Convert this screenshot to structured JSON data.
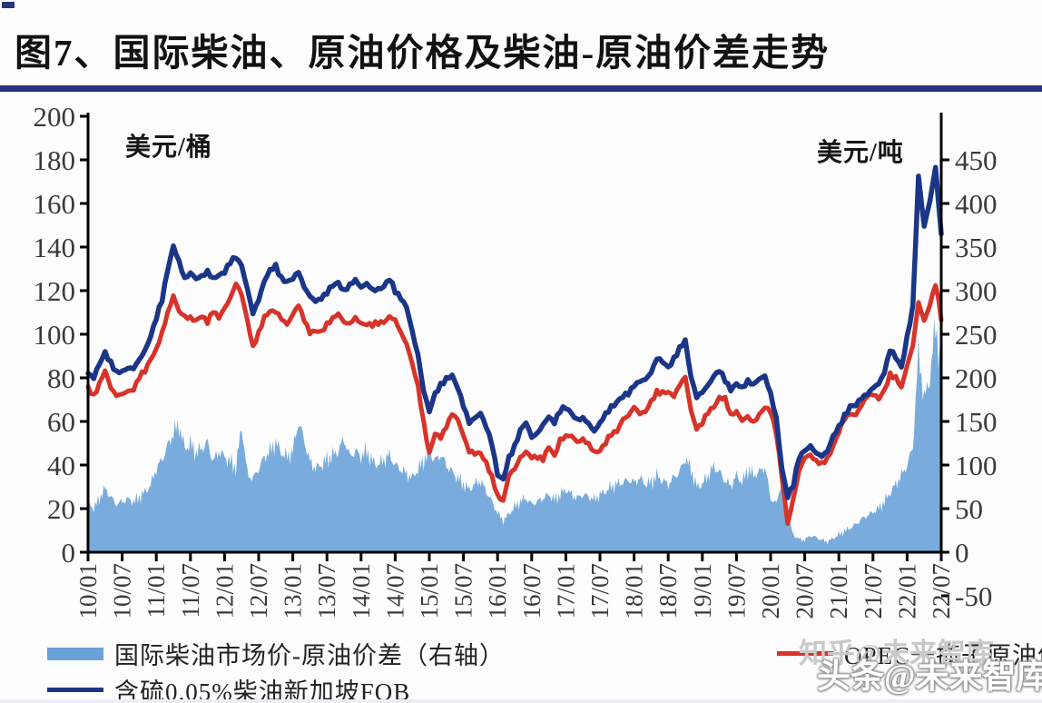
{
  "title": "图7、国际柴油、原油价格及柴油-原油价差走势",
  "watermark": {
    "back": "知乎@未来智库",
    "front": "头条@未来智库"
  },
  "colors": {
    "title_rule": "#28347e",
    "navy_line": "#1b3687",
    "red_line": "#d6342a",
    "area_fill": "#79acdc",
    "axis": "#000000",
    "tick_text": "#3a3a3e"
  },
  "chart_data": {
    "type": "line",
    "subtype": "two-line-plus-area",
    "grid": "off",
    "left_axis": {
      "label": "美元/桶",
      "min": 0,
      "max": 200,
      "step": 20,
      "ticks": [
        0,
        20,
        40,
        60,
        80,
        100,
        120,
        140,
        160,
        180,
        200
      ]
    },
    "right_axis": {
      "label": "美元/吨",
      "min": -50,
      "max": 450,
      "step": 50,
      "ticks": [
        -50,
        0,
        50,
        100,
        150,
        200,
        250,
        300,
        350,
        400,
        450
      ]
    },
    "x_tick_labels": [
      "10/01",
      "10/07",
      "11/01",
      "11/07",
      "12/01",
      "12/07",
      "13/01",
      "13/07",
      "14/01",
      "14/07",
      "15/01",
      "15/07",
      "16/01",
      "16/07",
      "17/01",
      "17/07",
      "18/01",
      "18/07",
      "19/01",
      "19/07",
      "20/01",
      "20/07",
      "21/01",
      "21/07",
      "22/01",
      "22/07"
    ],
    "x_start": "2010-01",
    "x_end": "2022-07",
    "x_interval": "monthly",
    "zero_line_right_axis": 0,
    "legend_position": "bottom",
    "series": [
      {
        "name": "国际柴油市场价-原油价差（右轴）",
        "type": "area",
        "axis": "right",
        "color": "#79acdc",
        "values": [
          58,
          50,
          62,
          73,
          63,
          55,
          58,
          61,
          58,
          63,
          69,
          77,
          96,
          106,
          122,
          137,
          146,
          119,
          124,
          114,
          119,
          126,
          104,
          116,
          109,
          104,
          96,
          145,
          90,
          84,
          96,
          109,
          116,
          126,
          114,
          109,
          116,
          150,
          128,
          104,
          96,
          100,
          106,
          111,
          116,
          130,
          110,
          116,
          110,
          116,
          104,
          100,
          106,
          111,
          100,
          95,
          90,
          85,
          95,
          105,
          115,
          105,
          112,
          100,
          92,
          85,
          78,
          72,
          78,
          82,
          70,
          58,
          45,
          36,
          44,
          52,
          58,
          62,
          55,
          58,
          62,
          66,
          60,
          66,
          72,
          66,
          62,
          66,
          64,
          60,
          66,
          70,
          75,
          78,
          80,
          83,
          80,
          85,
          78,
          80,
          88,
          82,
          78,
          86,
          92,
          108,
          95,
          75,
          78,
          88,
          98,
          92,
          82,
          76,
          88,
          80,
          95,
          88,
          92,
          98,
          62,
          55,
          85,
          40,
          20,
          15,
          14,
          19,
          17,
          14,
          12,
          16,
          20,
          24,
          28,
          32,
          38,
          42,
          46,
          50,
          58,
          68,
          78,
          88,
          100,
          120,
          230,
          175,
          200,
          262,
          205
        ]
      },
      {
        "name": "OPEC一揽子原油价格",
        "type": "line",
        "axis": "left",
        "color": "#d6342a",
        "values": [
          76,
          72,
          77,
          83,
          76,
          72,
          72,
          74,
          75,
          80,
          83,
          89,
          93,
          100,
          110,
          118,
          110,
          108,
          108,
          106,
          108,
          106,
          111,
          107,
          112,
          117,
          123,
          118,
          107,
          94,
          100,
          108,
          111,
          110,
          107,
          105,
          109,
          113,
          107,
          101,
          101,
          101,
          105,
          107,
          109,
          106,
          105,
          107,
          105,
          105,
          104,
          105,
          106,
          108,
          106,
          101,
          96,
          86,
          76,
          60,
          45,
          54,
          53,
          58,
          63,
          61,
          54,
          46,
          45,
          46,
          41,
          34,
          26,
          24,
          35,
          38,
          44,
          46,
          43,
          44,
          43,
          48,
          44,
          52,
          53,
          53,
          51,
          52,
          49,
          46,
          47,
          50,
          54,
          56,
          61,
          62,
          67,
          64,
          64,
          69,
          74,
          73,
          73,
          72,
          77,
          80,
          65,
          57,
          59,
          64,
          67,
          71,
          70,
          63,
          65,
          60,
          62,
          60,
          63,
          66,
          65,
          55,
          34,
          13,
          25,
          37,
          43,
          45,
          42,
          40,
          43,
          49,
          55,
          61,
          64,
          63,
          67,
          72,
          73,
          70,
          74,
          82,
          80,
          75,
          86,
          95,
          114,
          106,
          114,
          123,
          107
        ]
      },
      {
        "name": "含硫0.05%柴油新加坡FOB",
        "type": "line",
        "axis": "left",
        "color": "#1b3687",
        "values": [
          82,
          80,
          86,
          92,
          87,
          82,
          83,
          85,
          84,
          88,
          93,
          99,
          107,
          116,
          130,
          140,
          133,
          126,
          128,
          125,
          127,
          129,
          125,
          127,
          129,
          133,
          135,
          132,
          121,
          109,
          116,
          125,
          129,
          131,
          126,
          124,
          125,
          129,
          122,
          117,
          115,
          117,
          119,
          122,
          124,
          120,
          122,
          125,
          122,
          123,
          120,
          121,
          122,
          125,
          120,
          117,
          112,
          101,
          91,
          74,
          64,
          73,
          77,
          79,
          81,
          76,
          67,
          59,
          62,
          64,
          57,
          50,
          36,
          33,
          43,
          49,
          56,
          59,
          53,
          55,
          58,
          62,
          60,
          65,
          66,
          64,
          61,
          61,
          59,
          56,
          59,
          63,
          67,
          69,
          71,
          73,
          77,
          78,
          79,
          83,
          89,
          87,
          85,
          89,
          93,
          97,
          81,
          71,
          73,
          77,
          81,
          83,
          79,
          75,
          77,
          75,
          79,
          77,
          79,
          81,
          73,
          61,
          38,
          26,
          31,
          43,
          47,
          49,
          45,
          44,
          47,
          53,
          57,
          63,
          67,
          67,
          71,
          73,
          75,
          77,
          83,
          93,
          89,
          85,
          99,
          112,
          172,
          150,
          161,
          176,
          146
        ]
      }
    ]
  }
}
